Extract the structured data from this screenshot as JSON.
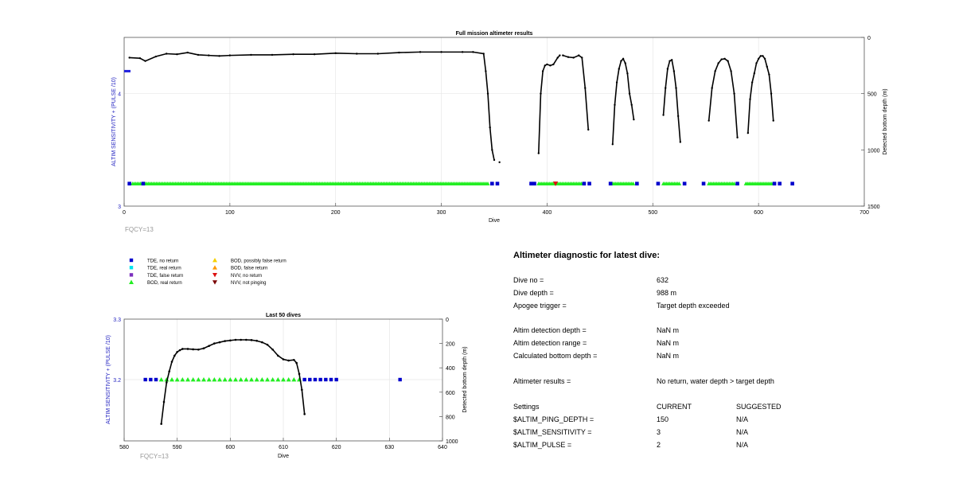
{
  "chart_data": [
    {
      "type": "scatter",
      "title": "Full mission altimeter results",
      "xlabel": "Dive",
      "ylabel_left": "ALTIM SENSITIVITY + (PULSE /10)",
      "ylabel_right": "Detected bottom depth (m)",
      "xlim": [
        0,
        700
      ],
      "ylim_left": [
        3,
        4.5
      ],
      "ylim_right": [
        1500,
        0
      ],
      "xticks": [
        "0",
        "100",
        "200",
        "300",
        "400",
        "500",
        "600",
        "700"
      ],
      "yticks_left": [
        "3",
        "4"
      ],
      "yticks_right": [
        "0",
        "500",
        "1000",
        "1500"
      ],
      "grid": true,
      "footnote": "FQCY=13",
      "sensitivity_series": {
        "name": "ALTIM SENSITIVITY + (PULSE /10)",
        "x": [
          0,
          1,
          2,
          3,
          4,
          5,
          6
        ],
        "y": [
          4.2,
          4.2,
          4.2,
          4.2,
          4.2,
          4.2,
          4.2
        ]
      },
      "depth_segments": [
        {
          "x": [
            5,
            15,
            20,
            30,
            40,
            50,
            60,
            70,
            80,
            90,
            100,
            120,
            140,
            160,
            180,
            200,
            220,
            240,
            260,
            280,
            300,
            320,
            330,
            340,
            342,
            344,
            346,
            348,
            350
          ],
          "y": [
            180,
            185,
            210,
            170,
            145,
            150,
            135,
            155,
            160,
            165,
            160,
            155,
            155,
            150,
            150,
            140,
            145,
            145,
            135,
            130,
            130,
            130,
            130,
            145,
            300,
            500,
            800,
            1000,
            1090
          ]
        },
        {
          "x": [
            355
          ],
          "y": [
            1110
          ]
        },
        {
          "x": [
            392,
            394,
            396,
            398,
            400,
            403,
            406,
            410,
            412
          ],
          "y": [
            1030,
            500,
            300,
            250,
            240,
            250,
            240,
            180,
            160
          ]
        },
        {
          "x": [
            415,
            420,
            425,
            430,
            433,
            436,
            439
          ],
          "y": [
            160,
            175,
            180,
            160,
            180,
            450,
            820
          ]
        },
        {
          "x": [
            462,
            464,
            466,
            468,
            470,
            472,
            474,
            476,
            478,
            480,
            482
          ],
          "y": [
            950,
            600,
            400,
            280,
            210,
            190,
            230,
            320,
            500,
            600,
            730
          ]
        },
        {
          "x": [
            510,
            512,
            514,
            516,
            518,
            520,
            522,
            524,
            526
          ],
          "y": [
            690,
            450,
            280,
            210,
            200,
            300,
            450,
            700,
            930
          ]
        },
        {
          "x": [
            553,
            556,
            559,
            562,
            565,
            568,
            571,
            574,
            577,
            580
          ],
          "y": [
            740,
            450,
            300,
            230,
            195,
            190,
            210,
            300,
            500,
            890
          ]
        },
        {
          "x": [
            590,
            592,
            594,
            596,
            598,
            600,
            602,
            604,
            606,
            608,
            610,
            612,
            614
          ],
          "y": [
            850,
            550,
            400,
            320,
            230,
            190,
            165,
            165,
            190,
            260,
            330,
            500,
            740
          ]
        }
      ],
      "tde_no_return": [
        [
          5,
          1210
        ],
        [
          18,
          1210
        ],
        [
          348,
          1210
        ],
        [
          353,
          1210
        ],
        [
          385,
          1210
        ],
        [
          388,
          1210
        ],
        [
          435,
          1210
        ],
        [
          440,
          1210
        ],
        [
          460,
          1210
        ],
        [
          485,
          1210
        ],
        [
          505,
          1210
        ],
        [
          530,
          1210
        ],
        [
          548,
          1210
        ],
        [
          580,
          1210
        ],
        [
          615,
          1210
        ],
        [
          620,
          1210
        ],
        [
          632,
          1210
        ]
      ],
      "bod_real_return_ranges": [
        [
          8,
          345
        ],
        [
          392,
          435
        ],
        [
          462,
          482
        ],
        [
          510,
          526
        ],
        [
          553,
          578
        ],
        [
          588,
          614
        ]
      ],
      "nvv_no_return": [
        [
          408,
          1210
        ]
      ]
    },
    {
      "type": "scatter",
      "title": "Last 50 dives",
      "xlabel": "Dive",
      "ylabel_left": "ALTIM SENSITIVITY + (PULSE /10)",
      "ylabel_right": "Detected bottom depth (m)",
      "xlim": [
        580,
        640
      ],
      "ylim_left": [
        3.1,
        3.3
      ],
      "ylim_right": [
        1000,
        0
      ],
      "xticks": [
        "580",
        "590",
        "600",
        "610",
        "620",
        "630",
        "640"
      ],
      "yticks_left": [
        "3.2",
        "3.3"
      ],
      "yticks_right": [
        "0",
        "200",
        "400",
        "600",
        "800",
        "1000"
      ],
      "grid": true,
      "footnote": "FQCY=13",
      "depth_series": {
        "x": [
          587,
          587.5,
          588,
          588.5,
          589,
          589.5,
          590,
          590.5,
          591,
          592,
          593,
          594,
          595,
          596,
          597,
          598,
          599,
          600,
          601,
          602,
          603,
          604,
          605,
          606,
          607,
          608,
          609,
          610,
          611,
          612,
          612.5,
          613,
          613.5,
          614
        ],
        "y": [
          860,
          680,
          520,
          430,
          350,
          300,
          270,
          255,
          245,
          245,
          248,
          250,
          240,
          220,
          200,
          190,
          180,
          175,
          170,
          170,
          170,
          172,
          178,
          190,
          210,
          250,
          300,
          330,
          340,
          335,
          360,
          450,
          580,
          780
        ]
      },
      "tde_no_return_x": [
        584,
        585,
        586,
        614,
        615,
        616,
        617,
        618,
        619,
        620,
        632
      ],
      "bod_real_return_x": [
        587,
        588,
        589,
        590,
        591,
        592,
        593,
        594,
        595,
        596,
        597,
        598,
        599,
        600,
        601,
        602,
        603,
        604,
        605,
        606,
        607,
        608,
        609,
        610,
        611,
        612,
        613
      ],
      "marker_y_left": 3.2
    }
  ],
  "legend": {
    "col1": [
      {
        "label": "TDE, no return",
        "color": "#0000cc",
        "shape": "square"
      },
      {
        "label": "TDE, real return",
        "color": "#00e5ee",
        "shape": "square"
      },
      {
        "label": "TDE, false return",
        "color": "#7b2fbe",
        "shape": "square"
      },
      {
        "label": "BOD, real return",
        "color": "#22ee22",
        "shape": "triangle-up"
      }
    ],
    "col2": [
      {
        "label": "BOD, possibly false return",
        "color": "#f5d000",
        "shape": "triangle-up"
      },
      {
        "label": "BOD, false return",
        "color": "#ff9900",
        "shape": "triangle-up"
      },
      {
        "label": "NVV, no return",
        "color": "#dd1111",
        "shape": "triangle-down"
      },
      {
        "label": "NVV, not pinging",
        "color": "#7a0000",
        "shape": "triangle-down"
      }
    ]
  },
  "diagnostic": {
    "title": "Altimeter diagnostic for latest dive:",
    "rows": [
      {
        "label": "Dive no =",
        "value": "632"
      },
      {
        "label": "Dive depth =",
        "value": "988 m"
      },
      {
        "label": "Apogee trigger =",
        "value": "Target depth exceeded"
      },
      {
        "label": "Altim detection depth =",
        "value": "NaN m"
      },
      {
        "label": "Altim detection range =",
        "value": "NaN m"
      },
      {
        "label": "Calculated bottom depth =",
        "value": "NaN m"
      },
      {
        "label": "Altimeter results =",
        "value": "No return, water depth > target depth"
      }
    ],
    "settings": {
      "header": {
        "label": "Settings",
        "current": "CURRENT",
        "suggested": "SUGGESTED"
      },
      "rows": [
        {
          "label": "$ALTIM_PING_DEPTH =",
          "current": "150",
          "suggested": "N/A"
        },
        {
          "label": "$ALTIM_SENSITIVITY =",
          "current": "3",
          "suggested": "N/A"
        },
        {
          "label": "$ALTIM_PULSE =",
          "current": "2",
          "suggested": "N/A"
        }
      ]
    }
  }
}
